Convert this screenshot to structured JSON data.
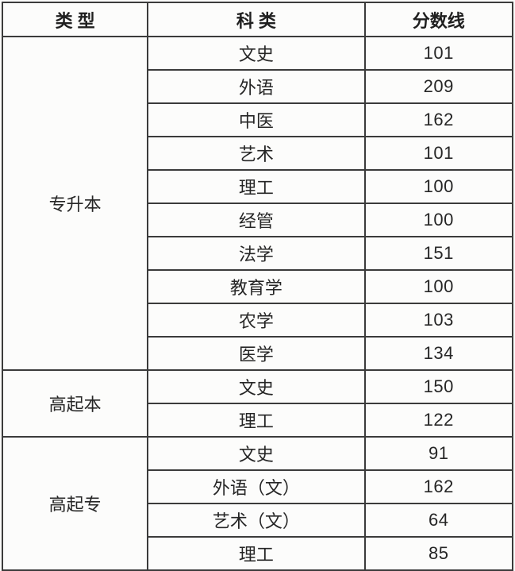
{
  "table": {
    "headers": {
      "type": "类 型",
      "subject": "科 类",
      "score": "分数线"
    },
    "groups": [
      {
        "type": "专升本",
        "rows": [
          {
            "subject": "文史",
            "score": "101"
          },
          {
            "subject": "外语",
            "score": "209"
          },
          {
            "subject": "中医",
            "score": "162"
          },
          {
            "subject": "艺术",
            "score": "101"
          },
          {
            "subject": "理工",
            "score": "100"
          },
          {
            "subject": "经管",
            "score": "100"
          },
          {
            "subject": "法学",
            "score": "151"
          },
          {
            "subject": "教育学",
            "score": "100"
          },
          {
            "subject": "农学",
            "score": "103"
          },
          {
            "subject": "医学",
            "score": "134"
          }
        ]
      },
      {
        "type": "高起本",
        "rows": [
          {
            "subject": "文史",
            "score": "150"
          },
          {
            "subject": "理工",
            "score": "122"
          }
        ]
      },
      {
        "type": "高起专",
        "rows": [
          {
            "subject": "文史",
            "score": "91"
          },
          {
            "subject": "外语（文）",
            "score": "162"
          },
          {
            "subject": "艺术（文）",
            "score": "64"
          },
          {
            "subject": "理工",
            "score": "85"
          }
        ]
      }
    ]
  },
  "colors": {
    "border": "#3b3b3b",
    "background": "#fbfbfa",
    "text": "#262626"
  }
}
